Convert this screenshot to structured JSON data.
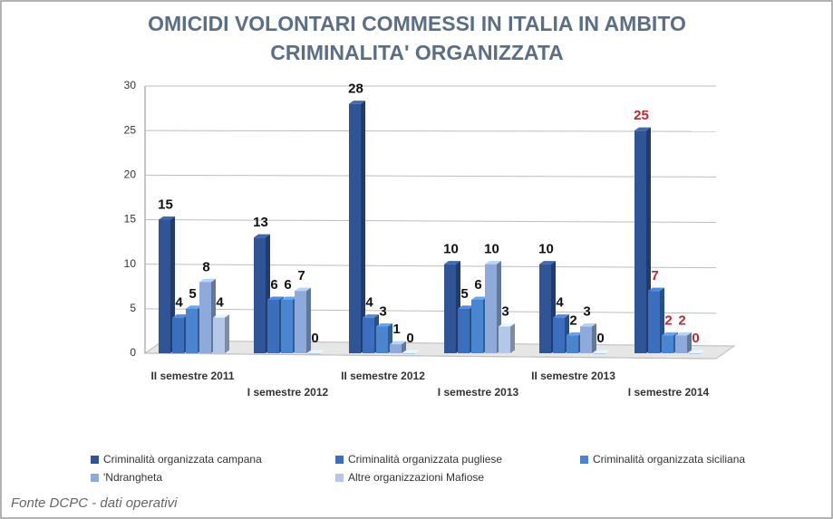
{
  "chart_data": {
    "type": "bar3d",
    "title": [
      "OMICIDI VOLONTARI COMMESSI IN ITALIA IN AMBITO",
      "CRIMINALITA' ORGANIZZATA"
    ],
    "categories": [
      "II semestre 2011",
      "I semestre 2012",
      "II semestre 2012",
      "I semestre 2013",
      "II semestre 2013",
      "I semestre 2014"
    ],
    "series": [
      {
        "name": "Criminalità organizzata campana",
        "color": "#2f5597",
        "values": [
          15,
          13,
          28,
          10,
          10,
          25
        ]
      },
      {
        "name": "Criminalità organizzata pugliese",
        "color": "#3b6fbd",
        "values": [
          4,
          6,
          4,
          5,
          4,
          7
        ]
      },
      {
        "name": "Criminalità organizzata siciliana",
        "color": "#4a86cf",
        "values": [
          5,
          6,
          3,
          6,
          2,
          2
        ]
      },
      {
        "name": "'Ndrangheta",
        "color": "#8eaadb",
        "values": [
          8,
          7,
          1,
          10,
          3,
          2
        ]
      },
      {
        "name": "Altre organizzazioni Mafiose",
        "color": "#b4c7e7",
        "values": [
          4,
          0,
          0,
          3,
          0,
          0
        ]
      }
    ],
    "ylim": [
      0,
      30
    ],
    "yticks": [
      0,
      5,
      10,
      15,
      20,
      25,
      30
    ],
    "grid": true,
    "label_color": "#111111",
    "highlight_label_color": "#c0262c",
    "highlight_categories": [
      5
    ],
    "source": "Fonte DCPC - dati operativi"
  }
}
